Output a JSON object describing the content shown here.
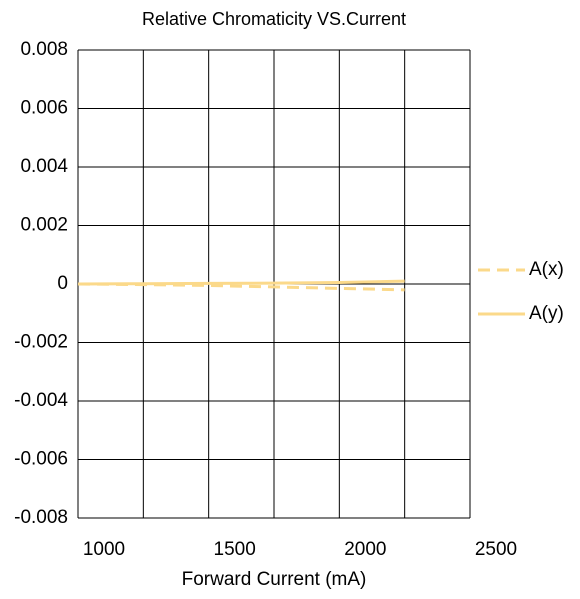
{
  "chart_data": {
    "type": "line",
    "title": "Relative Chromaticity VS.Current",
    "x_label": "Forward Current (mA)",
    "x": [
      1000,
      1250,
      1500,
      1750,
      2000,
      2250
    ],
    "series": [
      {
        "name": "A(x)",
        "color": "#fbd98a",
        "dash": true,
        "values": [
          0,
          -2e-05,
          -5e-05,
          -0.0001,
          -0.00015,
          -0.0002
        ]
      },
      {
        "name": "A(y)",
        "color": "#fbd98a",
        "dash": false,
        "values": [
          0,
          1e-05,
          2e-05,
          3e-05,
          5e-05,
          0.0001
        ]
      }
    ],
    "xlim": [
      1000,
      2500
    ],
    "xticks": [
      1000,
      1500,
      2000,
      2500
    ],
    "x_minor_ticks": [
      1250,
      1750,
      2250
    ],
    "ylim": [
      -0.008,
      0.008
    ],
    "yticks": [
      -0.008,
      -0.006,
      -0.004,
      -0.002,
      0,
      0.002,
      0.004,
      0.006,
      0.008
    ],
    "grid": true,
    "legend": "right"
  }
}
